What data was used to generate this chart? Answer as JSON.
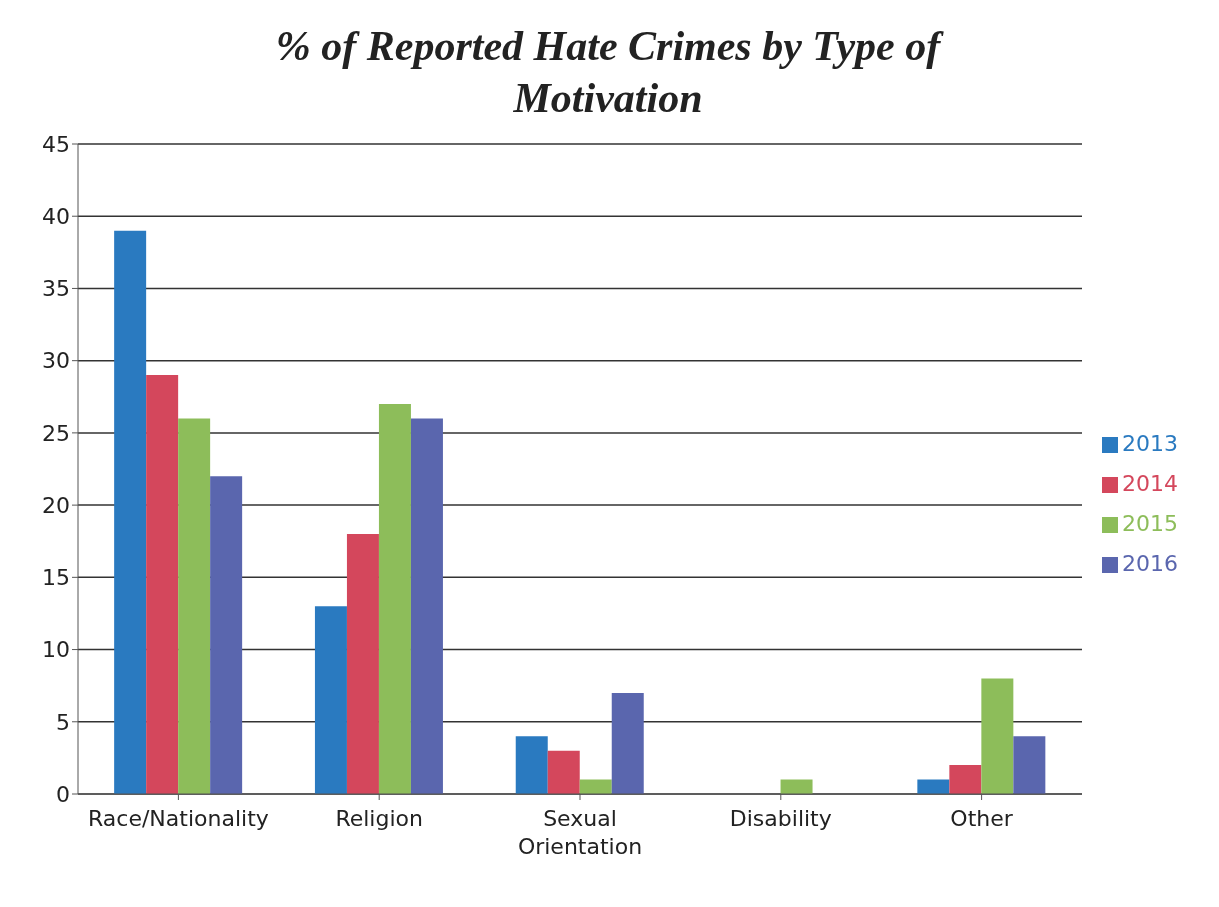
{
  "chart_data": {
    "type": "bar",
    "title": "% of Reported Hate Crimes by Type of Motivation",
    "categories": [
      "Race/Nationality",
      "Religion",
      "Sexual Orientation",
      "Disability",
      "Other"
    ],
    "series": [
      {
        "name": "2013",
        "color": "#2a7ac0",
        "values": [
          39,
          13,
          4,
          0,
          1
        ]
      },
      {
        "name": "2014",
        "color": "#d4475c",
        "values": [
          29,
          18,
          3,
          0,
          2
        ]
      },
      {
        "name": "2015",
        "color": "#8dbd5a",
        "values": [
          26,
          27,
          1,
          1,
          8
        ]
      },
      {
        "name": "2016",
        "color": "#5a66ae",
        "values": [
          22,
          26,
          7,
          0,
          4
        ]
      }
    ],
    "ylim": [
      0,
      45
    ],
    "yticks": [
      0,
      5,
      10,
      15,
      20,
      25,
      30,
      35,
      40,
      45
    ],
    "grid": "y",
    "legend": "right"
  }
}
